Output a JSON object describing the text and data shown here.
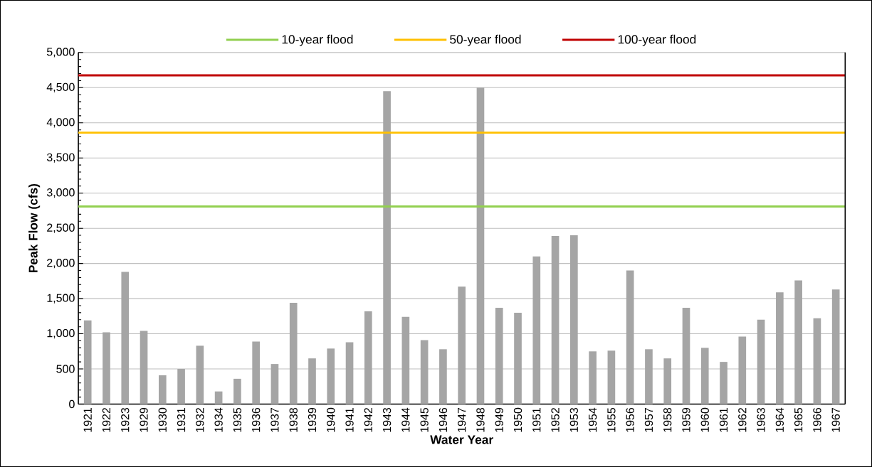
{
  "chart_data": {
    "type": "bar",
    "xlabel": "Water Year",
    "ylabel": "Peak Flow (cfs)",
    "categories": [
      "1921",
      "1922",
      "1923",
      "1929",
      "1930",
      "1931",
      "1932",
      "1934",
      "1935",
      "1936",
      "1937",
      "1938",
      "1939",
      "1940",
      "1941",
      "1942",
      "1943",
      "1944",
      "1945",
      "1946",
      "1947",
      "1948",
      "1949",
      "1950",
      "1951",
      "1952",
      "1953",
      "1954",
      "1955",
      "1956",
      "1957",
      "1958",
      "1959",
      "1960",
      "1961",
      "1962",
      "1963",
      "1964",
      "1965",
      "1966",
      "1967"
    ],
    "values": [
      1190,
      1020,
      1880,
      1040,
      410,
      500,
      830,
      180,
      360,
      890,
      570,
      1440,
      650,
      790,
      880,
      1320,
      4450,
      1240,
      910,
      780,
      1670,
      4500,
      1370,
      1300,
      2100,
      2390,
      2400,
      750,
      760,
      1900,
      780,
      650,
      1370,
      800,
      600,
      960,
      1200,
      1590,
      1760,
      1220,
      1630
    ],
    "color": "#a5a5a5",
    "ylim": [
      0,
      5000
    ],
    "yticks": [
      {
        "value": 0,
        "label": "0"
      },
      {
        "value": 500,
        "label": "500"
      },
      {
        "value": 1000,
        "label": "1,000"
      },
      {
        "value": 1500,
        "label": "1,500"
      },
      {
        "value": 2000,
        "label": "2,000"
      },
      {
        "value": 2500,
        "label": "2,500"
      },
      {
        "value": 3000,
        "label": "3,000"
      },
      {
        "value": 3500,
        "label": "3,500"
      },
      {
        "value": 4000,
        "label": "4,000"
      },
      {
        "value": 4500,
        "label": "4,500"
      },
      {
        "value": 5000,
        "label": "5,000"
      }
    ],
    "grid": "y",
    "legend": "top",
    "ref_lines": [
      {
        "axis": "y",
        "value": 2810,
        "label": "10-year flood",
        "color": "#92d050"
      },
      {
        "axis": "y",
        "value": 3860,
        "label": "50-year flood",
        "color": "#ffc000"
      },
      {
        "axis": "y",
        "value": 4675,
        "label": "100-year flood",
        "color": "#c00000"
      }
    ]
  }
}
